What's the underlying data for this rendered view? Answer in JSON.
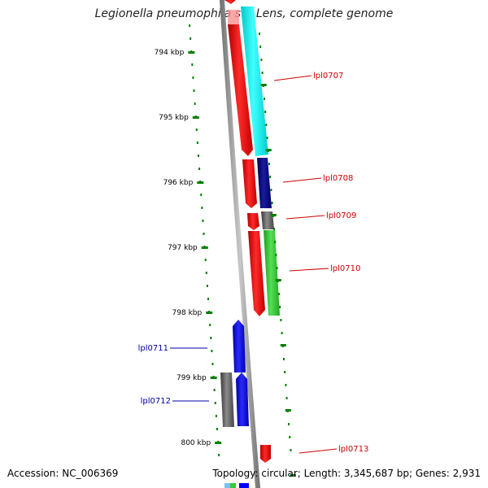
{
  "title": "Legionella pneumophila str. Lens, complete genome",
  "footer": {
    "accession": "Accession: NC_006369",
    "summary": "Topology: circular; Length: 3,345,687 bp; Genes: 2,931"
  },
  "scale": {
    "ticks": [
      {
        "kbp": 794,
        "label": "794 kbp"
      },
      {
        "kbp": 795,
        "label": "795 kbp"
      },
      {
        "kbp": 796,
        "label": "796 kbp"
      },
      {
        "kbp": 797,
        "label": "797 kbp"
      },
      {
        "kbp": 798,
        "label": "798 kbp"
      },
      {
        "kbp": 799,
        "label": "799 kbp"
      },
      {
        "kbp": 800,
        "label": "800 kbp"
      }
    ],
    "tick_color": "#008000"
  },
  "genes": [
    {
      "name": "lpl0707",
      "label": "lpl0707",
      "strand": "forward",
      "label_color": "#cc0000"
    },
    {
      "name": "lpl0708",
      "label": "lpl0708",
      "strand": "forward",
      "label_color": "#cc0000"
    },
    {
      "name": "lpl0709",
      "label": "lpl0709",
      "strand": "forward",
      "label_color": "#cc0000"
    },
    {
      "name": "lpl0710",
      "label": "lpl0710",
      "strand": "forward",
      "label_color": "#cc0000"
    },
    {
      "name": "lpl0711",
      "label": "lpl0711",
      "strand": "reverse",
      "label_color": "#0000aa"
    },
    {
      "name": "lpl0712",
      "label": "lpl0712",
      "strand": "reverse",
      "label_color": "#0000aa"
    },
    {
      "name": "lpl0713",
      "label": "lpl0713",
      "strand": "forward",
      "label_color": "#cc0000"
    }
  ],
  "colors": {
    "forward_cds": "#ff0000",
    "reverse_cds": "#0000ff",
    "backbone": "#8c8c8c",
    "cyan_feature": "#00ffff",
    "navy_feature": "#000080",
    "green_feature": "#33cc33",
    "gray_feature": "#606060"
  }
}
